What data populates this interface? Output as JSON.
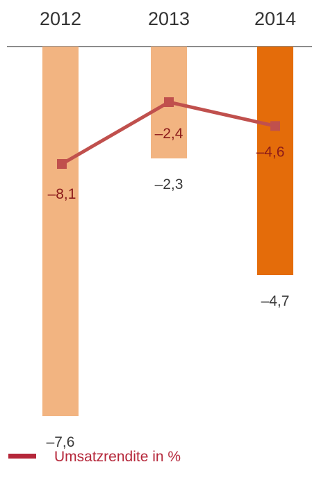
{
  "chart_data": {
    "type": "bar",
    "categories": [
      "2012",
      "2013",
      "2014"
    ],
    "bars": {
      "values": [
        -7.6,
        -2.3,
        -4.7
      ],
      "labels": [
        "–7,6",
        "–2,3",
        "–4,7"
      ],
      "colors": [
        "#f2b481",
        "#f2b481",
        "#e46c0a"
      ]
    },
    "line_series": {
      "name": "Umsatzrendite in %",
      "values": [
        -8.1,
        -2.4,
        -4.6
      ],
      "labels": [
        "–8,1",
        "–2,4",
        "–4,6"
      ],
      "color": "#c0504d",
      "marker": "square"
    },
    "legend": {
      "position": "bottom-left",
      "color": "#b5273a",
      "label": "Umsatzrendite in %"
    },
    "x_axis_position": "top",
    "grid": false
  }
}
